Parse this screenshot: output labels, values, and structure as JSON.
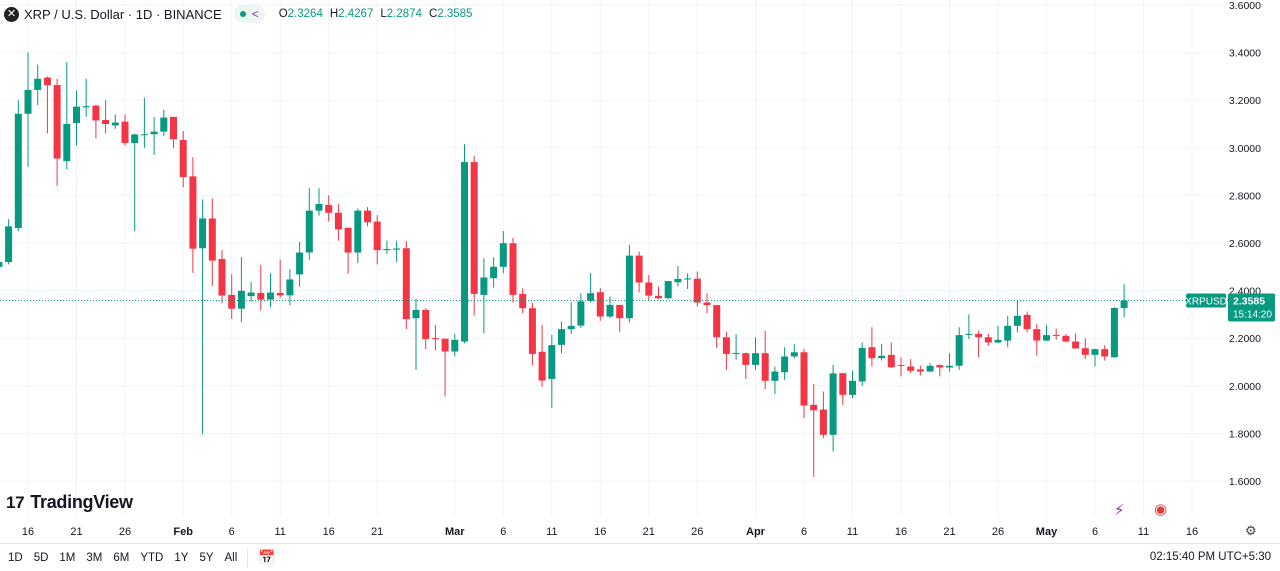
{
  "header": {
    "symbol_icon": "xrp-logo-icon",
    "title": "XRP / U.S. Dollar · 1D · BINANCE",
    "status_icon": "market-open-dot-icon",
    "share_icon": "share-icon",
    "ohlc": [
      {
        "label": "O",
        "value": "2.3264"
      },
      {
        "label": "H",
        "value": "2.4267"
      },
      {
        "label": "L",
        "value": "2.2874"
      },
      {
        "label": "C",
        "value": "2.3585"
      }
    ]
  },
  "logo": "TradingView",
  "last_price": {
    "symbol": "XRPUSD",
    "price": "2.3585",
    "countdown": "15:14:20"
  },
  "colors": {
    "up": "#089981",
    "down": "#F23645",
    "grid": "#f0f3fa",
    "text": "#131722"
  },
  "chart_data": {
    "type": "candlestick",
    "price_ticks": [
      "3.6000",
      "3.4000",
      "3.2000",
      "3.0000",
      "2.8000",
      "2.6000",
      "2.4000",
      "2.2000",
      "2.0000",
      "1.8000",
      "1.6000"
    ],
    "ylim": [
      1.6,
      3.6
    ],
    "grid": true,
    "time_ticks": [
      {
        "label": "16",
        "date": "Jan 16"
      },
      {
        "label": "21",
        "date": "Jan 21"
      },
      {
        "label": "26",
        "date": "Jan 26"
      },
      {
        "label": "Feb",
        "date": "Feb 1"
      },
      {
        "label": "6",
        "date": "Feb 6"
      },
      {
        "label": "11",
        "date": "Feb 11"
      },
      {
        "label": "16",
        "date": "Feb 16"
      },
      {
        "label": "21",
        "date": "Feb 21"
      },
      {
        "label": "Mar",
        "date": "Mar 1"
      },
      {
        "label": "6",
        "date": "Mar 6"
      },
      {
        "label": "11",
        "date": "Mar 11"
      },
      {
        "label": "16",
        "date": "Mar 16"
      },
      {
        "label": "21",
        "date": "Mar 21"
      },
      {
        "label": "26",
        "date": "Mar 26"
      },
      {
        "label": "Apr",
        "date": "Apr 1"
      },
      {
        "label": "6",
        "date": "Apr 6"
      },
      {
        "label": "11",
        "date": "Apr 11"
      },
      {
        "label": "16",
        "date": "Apr 16"
      },
      {
        "label": "21",
        "date": "Apr 21"
      },
      {
        "label": "26",
        "date": "Apr 26"
      },
      {
        "label": "May",
        "date": "May 1"
      },
      {
        "label": "6",
        "date": "May 6"
      },
      {
        "label": "11",
        "date": "May 11"
      },
      {
        "label": "16",
        "date": "May 16"
      }
    ],
    "candle_fields": [
      "date",
      "open",
      "high",
      "low",
      "close"
    ],
    "candles": [
      [
        "Jan 13",
        2.5,
        2.53,
        2.49,
        2.52
      ],
      [
        "Jan 14",
        2.52,
        2.7,
        2.51,
        2.67
      ],
      [
        "Jan 15",
        2.663,
        3.2,
        2.65,
        3.143
      ],
      [
        "Jan 16",
        3.143,
        3.4,
        2.92,
        3.243
      ],
      [
        "Jan 17",
        3.243,
        3.35,
        3.18,
        3.29
      ],
      [
        "Jan 18",
        3.295,
        3.3,
        3.06,
        3.263
      ],
      [
        "Jan 19",
        3.264,
        3.29,
        2.84,
        2.955
      ],
      [
        "Jan 20",
        2.944,
        3.36,
        2.91,
        3.1
      ],
      [
        "Jan 21",
        3.104,
        3.24,
        3.01,
        3.173
      ],
      [
        "Jan 22",
        3.17,
        3.29,
        3.13,
        3.175
      ],
      [
        "Jan 23",
        3.177,
        3.18,
        3.04,
        3.115
      ],
      [
        "Jan 24",
        3.117,
        3.2,
        3.06,
        3.1
      ],
      [
        "Jan 25",
        3.094,
        3.14,
        3.08,
        3.106
      ],
      [
        "Jan 26",
        3.11,
        3.14,
        3.01,
        3.02
      ],
      [
        "Jan 27",
        3.02,
        3.06,
        2.65,
        3.056
      ],
      [
        "Jan 28",
        3.054,
        3.21,
        3.0,
        3.057
      ],
      [
        "Jan 29",
        3.057,
        3.13,
        2.97,
        3.068
      ],
      [
        "Jan 30",
        3.068,
        3.16,
        3.05,
        3.127
      ],
      [
        "Jan 31",
        3.13,
        3.13,
        3.0,
        3.036
      ],
      [
        "Feb 1",
        3.033,
        3.07,
        2.835,
        2.877
      ],
      [
        "Feb 2",
        2.88,
        2.96,
        2.474,
        2.576
      ],
      [
        "Feb 3",
        2.578,
        2.783,
        1.797,
        2.703
      ],
      [
        "Feb 4",
        2.703,
        2.787,
        2.42,
        2.526
      ],
      [
        "Feb 5",
        2.533,
        2.57,
        2.347,
        2.379
      ],
      [
        "Feb 6",
        2.382,
        2.469,
        2.281,
        2.324
      ],
      [
        "Feb 7",
        2.324,
        2.541,
        2.267,
        2.399
      ],
      [
        "Feb 8",
        2.377,
        2.436,
        2.354,
        2.392
      ],
      [
        "Feb 9",
        2.39,
        2.508,
        2.316,
        2.362
      ],
      [
        "Feb 10",
        2.362,
        2.473,
        2.33,
        2.392
      ],
      [
        "Feb 11",
        2.39,
        2.53,
        2.37,
        2.38
      ],
      [
        "Feb 12",
        2.38,
        2.49,
        2.337,
        2.447
      ],
      [
        "Feb 13",
        2.468,
        2.605,
        2.417,
        2.56
      ],
      [
        "Feb 14",
        2.56,
        2.83,
        2.53,
        2.736
      ],
      [
        "Feb 15",
        2.736,
        2.83,
        2.715,
        2.764
      ],
      [
        "Feb 16",
        2.76,
        2.8,
        2.69,
        2.727
      ],
      [
        "Feb 17",
        2.727,
        2.763,
        2.61,
        2.657
      ],
      [
        "Feb 18",
        2.664,
        2.664,
        2.47,
        2.56
      ],
      [
        "Feb 19",
        2.56,
        2.745,
        2.515,
        2.736
      ],
      [
        "Feb 20",
        2.736,
        2.75,
        2.67,
        2.687
      ],
      [
        "Feb 21",
        2.69,
        2.717,
        2.51,
        2.57
      ],
      [
        "Feb 22",
        2.57,
        2.61,
        2.553,
        2.575
      ],
      [
        "Feb 23",
        2.572,
        2.61,
        2.52,
        2.577
      ],
      [
        "Feb 24",
        2.578,
        2.608,
        2.238,
        2.28
      ],
      [
        "Feb 25",
        2.284,
        2.364,
        2.067,
        2.319
      ],
      [
        "Feb 26",
        2.319,
        2.326,
        2.154,
        2.196
      ],
      [
        "Feb 27",
        2.2,
        2.256,
        2.148,
        2.198
      ],
      [
        "Feb 28",
        2.198,
        2.198,
        1.955,
        2.144
      ],
      [
        "Mar 1",
        2.144,
        2.218,
        2.123,
        2.193
      ],
      [
        "Mar 2",
        2.186,
        3.015,
        2.179,
        2.94
      ],
      [
        "Mar 3",
        2.94,
        2.965,
        2.295,
        2.386
      ],
      [
        "Mar 4",
        2.382,
        2.536,
        2.221,
        2.455
      ],
      [
        "Mar 5",
        2.452,
        2.54,
        2.413,
        2.5
      ],
      [
        "Mar 6",
        2.5,
        2.65,
        2.473,
        2.599
      ],
      [
        "Mar 7",
        2.599,
        2.622,
        2.35,
        2.382
      ],
      [
        "Mar 8",
        2.386,
        2.41,
        2.305,
        2.326
      ],
      [
        "Mar 9",
        2.326,
        2.35,
        2.087,
        2.134
      ],
      [
        "Mar 10",
        2.143,
        2.256,
        1.997,
        2.022
      ],
      [
        "Mar 11",
        2.029,
        2.214,
        1.906,
        2.171
      ],
      [
        "Mar 12",
        2.172,
        2.27,
        2.137,
        2.238
      ],
      [
        "Mar 13",
        2.238,
        2.351,
        2.218,
        2.252
      ],
      [
        "Mar 14",
        2.253,
        2.389,
        2.242,
        2.355
      ],
      [
        "Mar 15",
        2.357,
        2.473,
        2.35,
        2.389
      ],
      [
        "Mar 16",
        2.393,
        2.41,
        2.273,
        2.291
      ],
      [
        "Mar 17",
        2.291,
        2.375,
        2.285,
        2.34
      ],
      [
        "Mar 18",
        2.34,
        2.34,
        2.225,
        2.284
      ],
      [
        "Mar 19",
        2.284,
        2.592,
        2.267,
        2.547
      ],
      [
        "Mar 20",
        2.547,
        2.564,
        2.392,
        2.434
      ],
      [
        "Mar 21",
        2.434,
        2.466,
        2.357,
        2.379
      ],
      [
        "Mar 22",
        2.378,
        2.417,
        2.365,
        2.368
      ],
      [
        "Mar 23",
        2.368,
        2.44,
        2.365,
        2.44
      ],
      [
        "Mar 24",
        2.435,
        2.503,
        2.417,
        2.449
      ],
      [
        "Mar 25",
        2.448,
        2.473,
        2.407,
        2.451
      ],
      [
        "Mar 26",
        2.45,
        2.48,
        2.333,
        2.35
      ],
      [
        "Mar 27",
        2.35,
        2.389,
        2.305,
        2.339
      ],
      [
        "Mar 28",
        2.339,
        2.339,
        2.158,
        2.204
      ],
      [
        "Mar 29",
        2.204,
        2.227,
        2.067,
        2.134
      ],
      [
        "Mar 30",
        2.135,
        2.217,
        2.109,
        2.138
      ],
      [
        "Mar 31",
        2.137,
        2.14,
        2.028,
        2.088
      ],
      [
        "Apr 1",
        2.088,
        2.204,
        2.067,
        2.137
      ],
      [
        "Apr 2",
        2.137,
        2.231,
        1.986,
        2.021
      ],
      [
        "Apr 3",
        2.021,
        2.081,
        1.965,
        2.06
      ],
      [
        "Apr 4",
        2.057,
        2.162,
        2.025,
        2.123
      ],
      [
        "Apr 5",
        2.123,
        2.175,
        2.115,
        2.141
      ],
      [
        "Apr 6",
        2.141,
        2.155,
        1.864,
        1.917
      ],
      [
        "Apr 7",
        1.92,
        2.008,
        1.617,
        1.897
      ],
      [
        "Apr 8",
        1.9,
        1.976,
        1.78,
        1.794
      ],
      [
        "Apr 9",
        1.794,
        2.088,
        1.724,
        2.052
      ],
      [
        "Apr 10",
        2.053,
        2.055,
        1.92,
        1.962
      ],
      [
        "Apr 11",
        1.962,
        2.064,
        1.948,
        2.021
      ],
      [
        "Apr 12",
        2.018,
        2.182,
        2.0,
        2.159
      ],
      [
        "Apr 13",
        2.162,
        2.246,
        2.081,
        2.116
      ],
      [
        "Apr 14",
        2.116,
        2.176,
        2.106,
        2.126
      ],
      [
        "Apr 15",
        2.13,
        2.182,
        2.075,
        2.078
      ],
      [
        "Apr 16",
        2.087,
        2.12,
        2.04,
        2.084
      ],
      [
        "Apr 17",
        2.081,
        2.112,
        2.053,
        2.063
      ],
      [
        "Apr 18",
        2.069,
        2.085,
        2.043,
        2.06
      ],
      [
        "Apr 19",
        2.06,
        2.095,
        2.058,
        2.084
      ],
      [
        "Apr 20",
        2.087,
        2.09,
        2.04,
        2.077
      ],
      [
        "Apr 21",
        2.077,
        2.137,
        2.06,
        2.084
      ],
      [
        "Apr 22",
        2.084,
        2.246,
        2.067,
        2.213
      ],
      [
        "Apr 23",
        2.215,
        2.3,
        2.196,
        2.218
      ],
      [
        "Apr 24",
        2.218,
        2.232,
        2.12,
        2.204
      ],
      [
        "Apr 25",
        2.204,
        2.218,
        2.168,
        2.182
      ],
      [
        "Apr 26",
        2.182,
        2.252,
        2.18,
        2.193
      ],
      [
        "Apr 27",
        2.19,
        2.294,
        2.162,
        2.252
      ],
      [
        "Apr 28",
        2.252,
        2.36,
        2.225,
        2.294
      ],
      [
        "Apr 29",
        2.298,
        2.312,
        2.225,
        2.238
      ],
      [
        "Apr 30",
        2.238,
        2.26,
        2.127,
        2.19
      ],
      [
        "May 1",
        2.19,
        2.256,
        2.188,
        2.213
      ],
      [
        "May 2",
        2.214,
        2.24,
        2.193,
        2.211
      ],
      [
        "May 3",
        2.21,
        2.218,
        2.183,
        2.186
      ],
      [
        "May 4",
        2.186,
        2.22,
        2.155,
        2.157
      ],
      [
        "May 5",
        2.158,
        2.2,
        2.112,
        2.13
      ],
      [
        "May 6",
        2.13,
        2.156,
        2.081,
        2.154
      ],
      [
        "May 7",
        2.154,
        2.17,
        2.106,
        2.123
      ],
      [
        "May 8",
        2.12,
        2.33,
        2.118,
        2.327
      ],
      [
        "May 9",
        2.3264,
        2.4267,
        2.2874,
        2.3585
      ]
    ]
  },
  "bottom_icons": {
    "ai_icon": "sparkle-lightning-icon",
    "session_icon": "us-flag-icon",
    "settings_icon": "gear-icon",
    "calendar_icon": "goto-date-calendar-icon"
  },
  "toolbar": {
    "ranges": [
      "1D",
      "5D",
      "1M",
      "3M",
      "6M",
      "YTD",
      "1Y",
      "5Y",
      "All"
    ],
    "clock": "02:15:40 PM UTC+5:30"
  }
}
